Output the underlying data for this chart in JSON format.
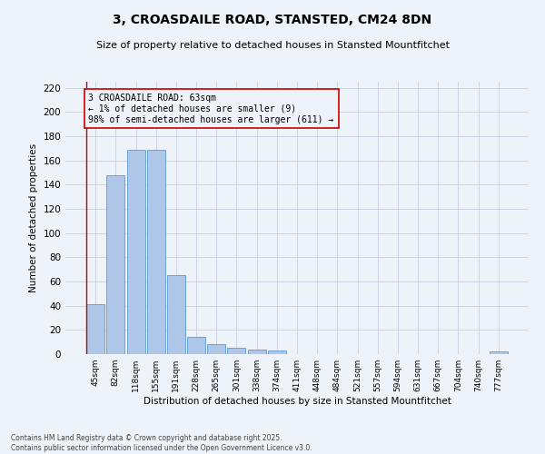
{
  "title": "3, CROASDAILE ROAD, STANSTED, CM24 8DN",
  "subtitle": "Size of property relative to detached houses in Stansted Mountfitchet",
  "xlabel": "Distribution of detached houses by size in Stansted Mountfitchet",
  "ylabel": "Number of detached properties",
  "footer1": "Contains HM Land Registry data © Crown copyright and database right 2025.",
  "footer2": "Contains public sector information licensed under the Open Government Licence v3.0.",
  "categories": [
    "45sqm",
    "82sqm",
    "118sqm",
    "155sqm",
    "191sqm",
    "228sqm",
    "265sqm",
    "301sqm",
    "338sqm",
    "374sqm",
    "411sqm",
    "448sqm",
    "484sqm",
    "521sqm",
    "557sqm",
    "594sqm",
    "631sqm",
    "667sqm",
    "704sqm",
    "740sqm",
    "777sqm"
  ],
  "values": [
    41,
    148,
    169,
    169,
    65,
    14,
    8,
    5,
    4,
    3,
    0,
    0,
    0,
    0,
    0,
    0,
    0,
    0,
    0,
    0,
    2
  ],
  "bar_color": "#aec6e8",
  "bar_edge_color": "#5b9bd5",
  "annotation_text": "3 CROASDAILE ROAD: 63sqm\n← 1% of detached houses are smaller (9)\n98% of semi-detached houses are larger (611) →",
  "vline_color": "#cc0000",
  "box_color": "#cc0000",
  "bg_color": "#eef2f9",
  "grid_color": "#c8d0e0",
  "ylim": [
    0,
    225
  ],
  "yticks": [
    0,
    20,
    40,
    60,
    80,
    100,
    120,
    140,
    160,
    180,
    200,
    220
  ]
}
